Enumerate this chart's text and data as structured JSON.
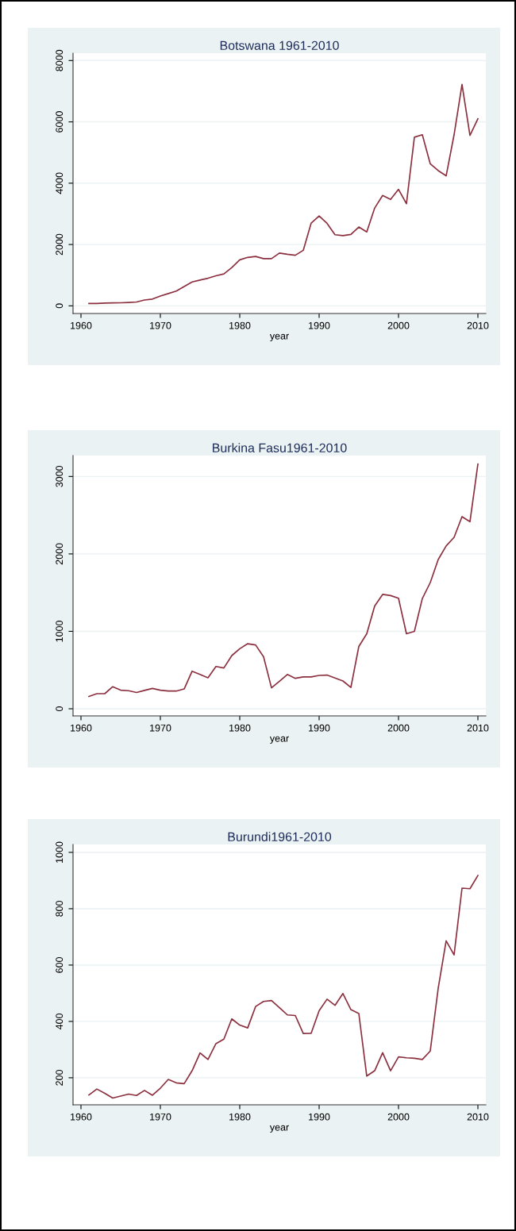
{
  "chart_data": [
    {
      "type": "line",
      "title": "Botswana 1961-2010",
      "xlabel": "year",
      "color": "#8c2f3e",
      "grid": "y",
      "x": [
        1961,
        1962,
        1963,
        1964,
        1965,
        1966,
        1967,
        1968,
        1969,
        1970,
        1971,
        1972,
        1973,
        1974,
        1975,
        1976,
        1977,
        1978,
        1979,
        1980,
        1981,
        1982,
        1983,
        1984,
        1985,
        1986,
        1987,
        1988,
        1989,
        1990,
        1991,
        1992,
        1993,
        1994,
        1995,
        1996,
        1997,
        1998,
        1999,
        2000,
        2001,
        2002,
        2003,
        2004,
        2005,
        2006,
        2007,
        2008,
        2009,
        2010
      ],
      "values": [
        75,
        75,
        90,
        95,
        100,
        110,
        125,
        190,
        220,
        320,
        400,
        480,
        630,
        780,
        840,
        900,
        980,
        1040,
        1250,
        1500,
        1580,
        1610,
        1540,
        1540,
        1720,
        1680,
        1650,
        1810,
        2700,
        2930,
        2690,
        2320,
        2290,
        2330,
        2570,
        2410,
        3190,
        3600,
        3470,
        3800,
        3330,
        5500,
        5580,
        4630,
        4410,
        4240,
        5580,
        7220,
        5560,
        6100
      ],
      "xlim": [
        1959,
        2011
      ],
      "ylim": [
        -250,
        8240
      ],
      "xticks": [
        1960,
        1970,
        1980,
        1990,
        2000,
        2010
      ],
      "yticks": [
        0,
        2000,
        4000,
        6000,
        8000
      ]
    },
    {
      "type": "line",
      "title": "Burkina Fasu1961-2010",
      "xlabel": "year",
      "color": "#8c2f3e",
      "grid": "y",
      "x": [
        1961,
        1962,
        1963,
        1964,
        1965,
        1966,
        1967,
        1968,
        1969,
        1970,
        1971,
        1972,
        1973,
        1974,
        1975,
        1976,
        1977,
        1978,
        1979,
        1980,
        1981,
        1982,
        1983,
        1984,
        1985,
        1986,
        1987,
        1988,
        1989,
        1990,
        1991,
        1992,
        1993,
        1994,
        1995,
        1996,
        1997,
        1998,
        1999,
        2000,
        2001,
        2002,
        2003,
        2004,
        2005,
        2006,
        2007,
        2008,
        2009,
        2010
      ],
      "values": [
        160,
        195,
        195,
        285,
        240,
        233,
        210,
        237,
        263,
        240,
        229,
        229,
        256,
        485,
        443,
        400,
        546,
        527,
        687,
        775,
        840,
        824,
        672,
        271,
        355,
        443,
        393,
        412,
        412,
        431,
        435,
        397,
        359,
        275,
        805,
        969,
        1328,
        1477,
        1462,
        1427,
        969,
        1000,
        1424,
        1630,
        1927,
        2103,
        2214,
        2481,
        2416,
        3160
      ],
      "xlim": [
        1959,
        2011
      ],
      "ylim": [
        -92,
        3270
      ],
      "xticks": [
        1960,
        1970,
        1980,
        1990,
        2000,
        2010
      ],
      "yticks": [
        0,
        1000,
        2000,
        3000
      ]
    },
    {
      "type": "line",
      "title": "Burundi1961-2010",
      "xlabel": "year",
      "color": "#8c2f3e",
      "grid": "y",
      "x": [
        1961,
        1962,
        1963,
        1964,
        1965,
        1966,
        1967,
        1968,
        1969,
        1970,
        1971,
        1972,
        1973,
        1974,
        1975,
        1976,
        1977,
        1978,
        1979,
        1980,
        1981,
        1982,
        1983,
        1984,
        1985,
        1986,
        1987,
        1988,
        1989,
        1990,
        1991,
        1992,
        1993,
        1994,
        1995,
        1996,
        1997,
        1998,
        1999,
        2000,
        2001,
        2002,
        2003,
        2004,
        2005,
        2006,
        2007,
        2008,
        2009,
        2010
      ],
      "values": [
        139,
        160,
        145,
        128,
        135,
        142,
        137,
        155,
        138,
        163,
        194,
        182,
        179,
        225,
        288,
        265,
        321,
        337,
        409,
        387,
        377,
        453,
        471,
        474,
        449,
        423,
        421,
        357,
        358,
        438,
        479,
        457,
        499,
        442,
        428,
        206,
        225,
        289,
        225,
        274,
        271,
        269,
        265,
        295,
        518,
        686,
        636,
        873,
        871,
        918
      ],
      "xlim": [
        1959,
        2011
      ],
      "ylim": [
        104,
        1028
      ],
      "xticks": [
        1960,
        1970,
        1980,
        1990,
        2000,
        2010
      ],
      "yticks": [
        200,
        400,
        600,
        800,
        1000
      ]
    }
  ]
}
